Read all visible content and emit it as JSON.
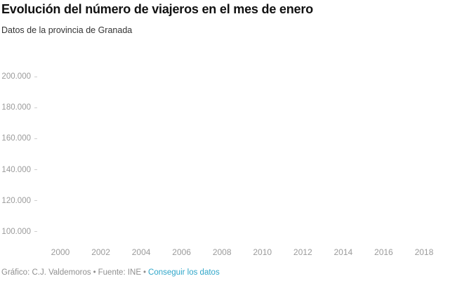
{
  "header": {
    "title": "Evolución del número de viajeros en el mes de enero",
    "subtitle": "Datos de la provincia de Granada"
  },
  "chart_data": {
    "type": "line",
    "title": "Evolución del número de viajeros en el mes de enero",
    "subtitle": "Datos de la provincia de Granada",
    "xlabel": "",
    "ylabel": "",
    "x_ticks": [
      "2000",
      "2002",
      "2004",
      "2006",
      "2008",
      "2010",
      "2012",
      "2014",
      "2016",
      "2018"
    ],
    "y_ticks": [
      "200.000",
      "180.000",
      "160.000",
      "140.000",
      "120.000",
      "100.000"
    ],
    "xlim": [
      2000,
      2018
    ],
    "ylim": [
      100000,
      200000
    ],
    "grid": false,
    "legend": false,
    "series": []
  },
  "footer": {
    "credit": "Gráfico: C.J. Valdemoros",
    "separator": "•",
    "source": "Fuente: INE",
    "link_label": "Conseguir los datos"
  },
  "colors": {
    "background": "#ffffff",
    "title": "#111111",
    "subtitle": "#333333",
    "axis_label": "#9b9b9b",
    "tick_mark": "#cfcfcf",
    "footer_text": "#8f8f8f",
    "link": "#2fa6c9"
  }
}
